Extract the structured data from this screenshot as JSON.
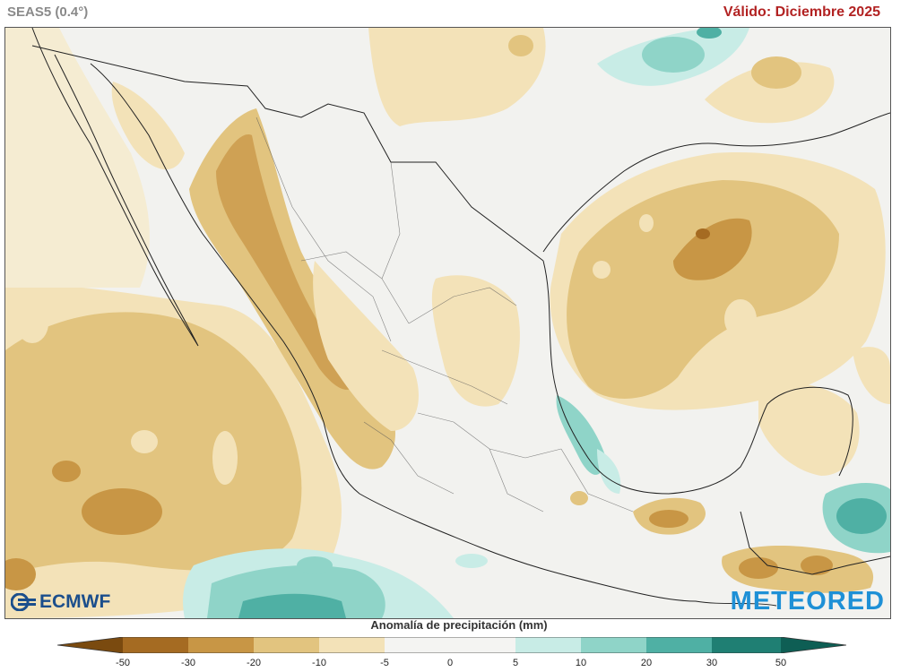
{
  "header": {
    "model": "SEAS5 (0.4°)",
    "valid": "Válido: Diciembre 2025"
  },
  "logos": {
    "left": "ECMWF",
    "right": "METEORED"
  },
  "legend": {
    "title": "Anomalía de precipitación (mm)",
    "ticks": [
      "-50",
      "-30",
      "-20",
      "-10",
      "-5",
      "0",
      "5",
      "10",
      "20",
      "30",
      "50"
    ],
    "colors": {
      "lt_-50": "#7a4a0f",
      "-50_-30": "#a56b22",
      "-30_-20": "#c89645",
      "-20_-10": "#e2c47f",
      "-10_-5": "#f3e2b8",
      "-5_0": "#f4f4f2",
      "0_5": "#f4f4f2",
      "5_10": "#c8ece6",
      "10_20": "#8fd4c8",
      "20_30": "#4fb0a4",
      "30_50": "#1f7f73",
      "gt_50": "#0e5e54"
    }
  }
}
